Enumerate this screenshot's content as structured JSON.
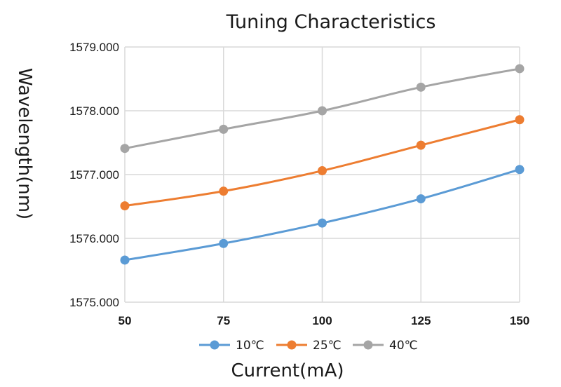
{
  "chart_data": {
    "type": "line",
    "title": "Tuning Characteristics",
    "xlabel": "Current(mA)",
    "ylabel": "Wavelength(nm)",
    "x": [
      50,
      75,
      100,
      125,
      150
    ],
    "x_tick_labels": [
      "50",
      "75",
      "100",
      "125",
      "150"
    ],
    "ylim": [
      1575.0,
      1579.0
    ],
    "y_ticks": [
      1575.0,
      1576.0,
      1577.0,
      1578.0,
      1579.0
    ],
    "y_tick_labels": [
      "1575.000",
      "1576.000",
      "1577.000",
      "1578.000",
      "1579.000"
    ],
    "grid": true,
    "legend_position": "bottom",
    "series": [
      {
        "name": "10℃",
        "color": "#5b9bd5",
        "values": [
          1575.66,
          1575.92,
          1576.24,
          1576.62,
          1577.08
        ]
      },
      {
        "name": "25℃",
        "color": "#ed7d31",
        "values": [
          1576.51,
          1576.74,
          1577.06,
          1577.46,
          1577.86
        ]
      },
      {
        "name": "40℃",
        "color": "#a5a5a5",
        "values": [
          1577.41,
          1577.71,
          1578.0,
          1578.37,
          1578.66
        ]
      }
    ]
  }
}
